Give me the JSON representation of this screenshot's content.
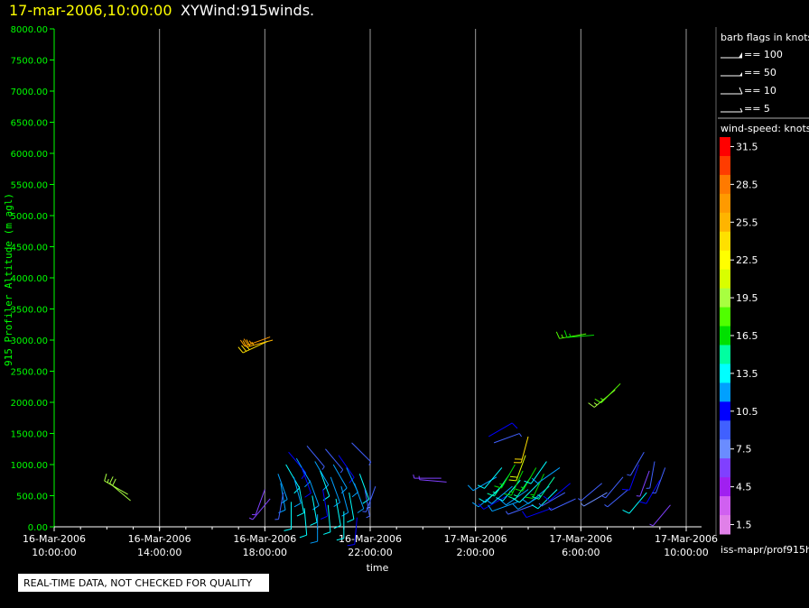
{
  "header": {
    "timestamp": "17-mar-2006,10:00:00",
    "title": "XYWind:915winds."
  },
  "colors": {
    "background": "#000000",
    "timestamp": "#ffff00",
    "title": "#ffffff",
    "axis_green": "#00ff00",
    "gridline": "#9a9a9a"
  },
  "barb_legend": {
    "title": "barb flags in knots",
    "items": [
      {
        "label": "== 100",
        "flag": "pennant"
      },
      {
        "label": "== 50",
        "flag": "pennant-small"
      },
      {
        "label": "== 10",
        "flag": "full-barb"
      },
      {
        "label": "== 5",
        "flag": "half-barb"
      }
    ]
  },
  "colorbar": {
    "title": "wind-speed: knots",
    "bins": [
      {
        "label": "31.5",
        "color": "#ff0000"
      },
      {
        "label": "",
        "color": "#ff3c00"
      },
      {
        "label": "28.5",
        "color": "#ff7a00"
      },
      {
        "label": "",
        "color": "#ff9a00"
      },
      {
        "label": "25.5",
        "color": "#ffb400"
      },
      {
        "label": "",
        "color": "#ffe000"
      },
      {
        "label": "22.5",
        "color": "#ffff00"
      },
      {
        "label": "",
        "color": "#d8ff00"
      },
      {
        "label": "19.5",
        "color": "#a8ff40"
      },
      {
        "label": "",
        "color": "#50ff00"
      },
      {
        "label": "16.5",
        "color": "#00e000"
      },
      {
        "label": "",
        "color": "#00ffa0"
      },
      {
        "label": "13.5",
        "color": "#00ffff"
      },
      {
        "label": "",
        "color": "#00a0ff"
      },
      {
        "label": "10.5",
        "color": "#0000ff"
      },
      {
        "label": "",
        "color": "#4060ff"
      },
      {
        "label": "7.5",
        "color": "#6a8cff"
      },
      {
        "label": "",
        "color": "#8040ff"
      },
      {
        "label": "4.5",
        "color": "#a020f0"
      },
      {
        "label": "",
        "color": "#d060f0"
      },
      {
        "label": "1.5",
        "color": "#e080e8"
      }
    ]
  },
  "footer": {
    "source": "iss-mapr/prof915h",
    "quality_notice": "REAL-TIME DATA, NOT CHECKED FOR QUALITY"
  },
  "chart_data": {
    "type": "scatter",
    "title": "XYWind:915winds.",
    "xlabel": "time",
    "ylabel": "915 Profiler Altitude (m agl)",
    "xlim_hours": [
      0,
      24
    ],
    "ylim": [
      0,
      8000
    ],
    "y_ticks": [
      "0.00",
      "500.00",
      "1000.00",
      "1500.00",
      "2000.00",
      "2500.00",
      "3000.00",
      "3500.00",
      "4000.00",
      "4500.00",
      "5000.00",
      "5500.00",
      "6000.00",
      "6500.00",
      "7000.00",
      "7500.00",
      "8000.00"
    ],
    "x_ticks": [
      {
        "date": "16-Mar-2006",
        "time": "10:00:00"
      },
      {
        "date": "16-Mar-2006",
        "time": "14:00:00"
      },
      {
        "date": "16-Mar-2006",
        "time": "18:00:00"
      },
      {
        "date": "16-Mar-2006",
        "time": "22:00:00"
      },
      {
        "date": "17-Mar-2006",
        "time": "2:00:00"
      },
      {
        "date": "17-Mar-2006",
        "time": "6:00:00"
      },
      {
        "date": "17-Mar-2006",
        "time": "10:00:00"
      }
    ],
    "grid": "vertical",
    "series": [
      {
        "units": "knots",
        "points": [
          {
            "t": 2.8,
            "alt": 520,
            "speed": 19,
            "dir": 300
          },
          {
            "t": 2.9,
            "alt": 420,
            "speed": 20,
            "dir": 310
          },
          {
            "t": 8.2,
            "alt": 3050,
            "speed": 27,
            "dir": 250
          },
          {
            "t": 8.3,
            "alt": 3000,
            "speed": 26,
            "dir": 255
          },
          {
            "t": 8.1,
            "alt": 2980,
            "speed": 25,
            "dir": 245
          },
          {
            "t": 8.0,
            "alt": 600,
            "speed": 6,
            "dir": 200
          },
          {
            "t": 8.2,
            "alt": 450,
            "speed": 5,
            "dir": 220
          },
          {
            "t": 8.5,
            "alt": 850,
            "speed": 12,
            "dir": 160
          },
          {
            "t": 8.6,
            "alt": 700,
            "speed": 11,
            "dir": 170
          },
          {
            "t": 8.7,
            "alt": 550,
            "speed": 8,
            "dir": 190
          },
          {
            "t": 8.8,
            "alt": 1000,
            "speed": 14,
            "dir": 150
          },
          {
            "t": 8.9,
            "alt": 1200,
            "speed": 10,
            "dir": 140
          },
          {
            "t": 9.0,
            "alt": 400,
            "speed": 13,
            "dir": 180
          },
          {
            "t": 9.1,
            "alt": 800,
            "speed": 12,
            "dir": 165
          },
          {
            "t": 9.2,
            "alt": 1100,
            "speed": 11,
            "dir": 150
          },
          {
            "t": 9.3,
            "alt": 650,
            "speed": 14,
            "dir": 170
          },
          {
            "t": 9.4,
            "alt": 950,
            "speed": 10,
            "dir": 160
          },
          {
            "t": 9.5,
            "alt": 300,
            "speed": 13,
            "dir": 175
          },
          {
            "t": 9.6,
            "alt": 1300,
            "speed": 9,
            "dir": 140
          },
          {
            "t": 9.7,
            "alt": 750,
            "speed": 12,
            "dir": 160
          },
          {
            "t": 9.8,
            "alt": 500,
            "speed": 14,
            "dir": 170
          },
          {
            "t": 9.9,
            "alt": 1050,
            "speed": 11,
            "dir": 150
          },
          {
            "t": 10.0,
            "alt": 200,
            "speed": 12,
            "dir": 180
          },
          {
            "t": 10.1,
            "alt": 900,
            "speed": 13,
            "dir": 160
          },
          {
            "t": 10.2,
            "alt": 600,
            "speed": 10,
            "dir": 170
          },
          {
            "t": 10.3,
            "alt": 1250,
            "speed": 9,
            "dir": 140
          },
          {
            "t": 10.4,
            "alt": 350,
            "speed": 14,
            "dir": 175
          },
          {
            "t": 10.5,
            "alt": 800,
            "speed": 12,
            "dir": 160
          },
          {
            "t": 10.6,
            "alt": 1000,
            "speed": 11,
            "dir": 150
          },
          {
            "t": 10.7,
            "alt": 450,
            "speed": 13,
            "dir": 170
          },
          {
            "t": 10.8,
            "alt": 1150,
            "speed": 10,
            "dir": 145
          },
          {
            "t": 10.9,
            "alt": 650,
            "speed": 12,
            "dir": 165
          },
          {
            "t": 11.0,
            "alt": 250,
            "speed": 14,
            "dir": 180
          },
          {
            "t": 11.1,
            "alt": 950,
            "speed": 11,
            "dir": 155
          },
          {
            "t": 11.2,
            "alt": 550,
            "speed": 13,
            "dir": 170
          },
          {
            "t": 11.3,
            "alt": 1350,
            "speed": 8,
            "dir": 135
          },
          {
            "t": 11.4,
            "alt": 700,
            "speed": 12,
            "dir": 160
          },
          {
            "t": 11.5,
            "alt": 150,
            "speed": 10,
            "dir": 185
          },
          {
            "t": 11.6,
            "alt": 850,
            "speed": 13,
            "dir": 160
          },
          {
            "t": 11.8,
            "alt": 600,
            "speed": 9,
            "dir": 170
          },
          {
            "t": 12.0,
            "alt": 750,
            "speed": 7,
            "dir": 180
          },
          {
            "t": 12.2,
            "alt": 650,
            "speed": 8,
            "dir": 200
          },
          {
            "t": 14.7,
            "alt": 780,
            "speed": 6,
            "dir": 270
          },
          {
            "t": 14.9,
            "alt": 720,
            "speed": 5,
            "dir": 275
          },
          {
            "t": 16.5,
            "alt": 1450,
            "speed": 10,
            "dir": 60
          },
          {
            "t": 16.7,
            "alt": 1350,
            "speed": 9,
            "dir": 70
          },
          {
            "t": 16.8,
            "alt": 800,
            "speed": 11,
            "dir": 240
          },
          {
            "t": 16.9,
            "alt": 600,
            "speed": 12,
            "dir": 230
          },
          {
            "t": 17.0,
            "alt": 950,
            "speed": 14,
            "dir": 220
          },
          {
            "t": 17.1,
            "alt": 700,
            "speed": 13,
            "dir": 225
          },
          {
            "t": 17.2,
            "alt": 500,
            "speed": 10,
            "dir": 240
          },
          {
            "t": 17.3,
            "alt": 850,
            "speed": 15,
            "dir": 215
          },
          {
            "t": 17.4,
            "alt": 650,
            "speed": 12,
            "dir": 230
          },
          {
            "t": 17.5,
            "alt": 1000,
            "speed": 16,
            "dir": 210
          },
          {
            "t": 17.6,
            "alt": 400,
            "speed": 11,
            "dir": 250
          },
          {
            "t": 17.7,
            "alt": 750,
            "speed": 14,
            "dir": 220
          },
          {
            "t": 17.8,
            "alt": 900,
            "speed": 17,
            "dir": 205
          },
          {
            "t": 17.9,
            "alt": 1150,
            "speed": 21,
            "dir": 200
          },
          {
            "t": 18.0,
            "alt": 1450,
            "speed": 24,
            "dir": 195
          },
          {
            "t": 18.0,
            "alt": 600,
            "speed": 12,
            "dir": 235
          },
          {
            "t": 18.1,
            "alt": 800,
            "speed": 15,
            "dir": 215
          },
          {
            "t": 18.2,
            "alt": 350,
            "speed": 9,
            "dir": 250
          },
          {
            "t": 18.3,
            "alt": 950,
            "speed": 16,
            "dir": 210
          },
          {
            "t": 18.4,
            "alt": 700,
            "speed": 13,
            "dir": 225
          },
          {
            "t": 18.5,
            "alt": 500,
            "speed": 11,
            "dir": 240
          },
          {
            "t": 18.6,
            "alt": 850,
            "speed": 17,
            "dir": 205
          },
          {
            "t": 18.7,
            "alt": 1050,
            "speed": 14,
            "dir": 215
          },
          {
            "t": 18.8,
            "alt": 650,
            "speed": 12,
            "dir": 230
          },
          {
            "t": 18.9,
            "alt": 300,
            "speed": 10,
            "dir": 250
          },
          {
            "t": 19.0,
            "alt": 800,
            "speed": 15,
            "dir": 215
          },
          {
            "t": 19.1,
            "alt": 600,
            "speed": 13,
            "dir": 225
          },
          {
            "t": 19.2,
            "alt": 950,
            "speed": 11,
            "dir": 235
          },
          {
            "t": 19.4,
            "alt": 550,
            "speed": 9,
            "dir": 240
          },
          {
            "t": 19.6,
            "alt": 700,
            "speed": 10,
            "dir": 230
          },
          {
            "t": 19.8,
            "alt": 450,
            "speed": 8,
            "dir": 245
          },
          {
            "t": 20.2,
            "alt": 3100,
            "speed": 18,
            "dir": 260
          },
          {
            "t": 20.5,
            "alt": 3080,
            "speed": 17,
            "dir": 265
          },
          {
            "t": 21.3,
            "alt": 2200,
            "speed": 19,
            "dir": 230
          },
          {
            "t": 21.5,
            "alt": 2300,
            "speed": 18,
            "dir": 225
          },
          {
            "t": 20.8,
            "alt": 700,
            "speed": 8,
            "dir": 230
          },
          {
            "t": 21.0,
            "alt": 550,
            "speed": 7,
            "dir": 240
          },
          {
            "t": 21.6,
            "alt": 800,
            "speed": 9,
            "dir": 220
          },
          {
            "t": 21.8,
            "alt": 600,
            "speed": 8,
            "dir": 230
          },
          {
            "t": 22.2,
            "alt": 1000,
            "speed": 10,
            "dir": 200
          },
          {
            "t": 22.4,
            "alt": 1200,
            "speed": 9,
            "dir": 210
          },
          {
            "t": 22.5,
            "alt": 550,
            "speed": 14,
            "dir": 220
          },
          {
            "t": 22.6,
            "alt": 900,
            "speed": 6,
            "dir": 200
          },
          {
            "t": 22.8,
            "alt": 1050,
            "speed": 8,
            "dir": 190
          },
          {
            "t": 23.0,
            "alt": 750,
            "speed": 10,
            "dir": 210
          },
          {
            "t": 23.2,
            "alt": 950,
            "speed": 9,
            "dir": 200
          },
          {
            "t": 23.4,
            "alt": 350,
            "speed": 5,
            "dir": 220
          }
        ]
      }
    ]
  }
}
